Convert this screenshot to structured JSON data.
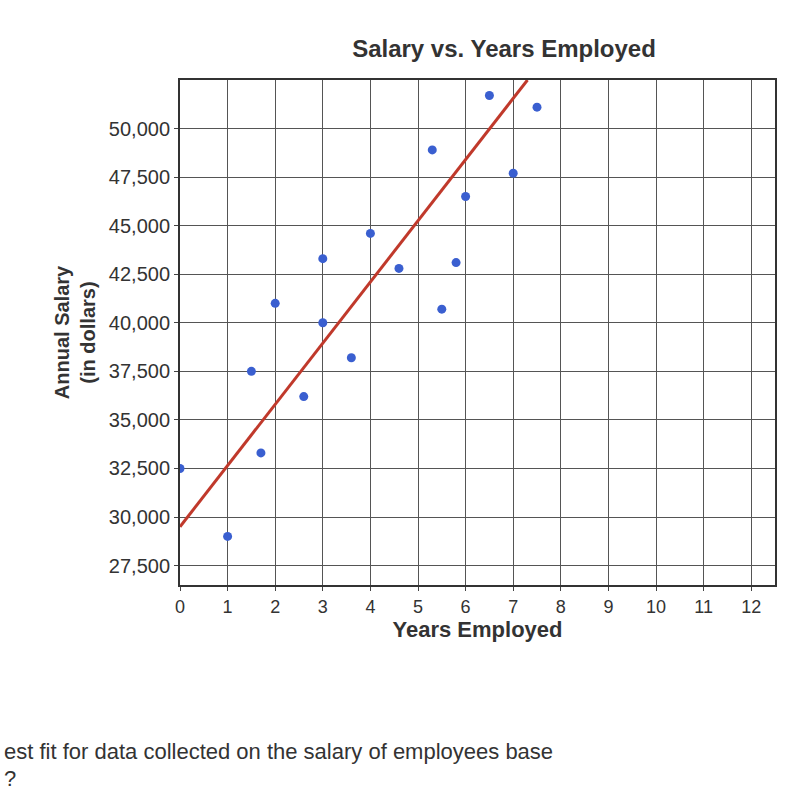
{
  "chart_data": {
    "type": "scatter",
    "title": "Salary vs. Years Employed",
    "x_label": "Years Employed",
    "y_label": "Annual Salary\n(in dollars)",
    "xlim": [
      0,
      12.5
    ],
    "xticks": [
      0,
      1,
      2,
      3,
      4,
      5,
      6,
      7,
      8,
      9,
      10,
      11,
      12
    ],
    "ylim": [
      26500,
      52500
    ],
    "yticks": [
      {
        "value": 27500,
        "label": "27,500"
      },
      {
        "value": 30000,
        "label": "30,000"
      },
      {
        "value": 32500,
        "label": "32,500"
      },
      {
        "value": 35000,
        "label": "35,000"
      },
      {
        "value": 37500,
        "label": "37,500"
      },
      {
        "value": 40000,
        "label": "40,000"
      },
      {
        "value": 42500,
        "label": "42,500"
      },
      {
        "value": 45000,
        "label": "45,000"
      },
      {
        "value": 47500,
        "label": "47,500"
      },
      {
        "value": 50000,
        "label": "50,000"
      }
    ],
    "grid": true,
    "series": [
      {
        "type": "scatter",
        "color": "#3a5fd0",
        "marker": "circle",
        "x": [
          0,
          1,
          1.5,
          1.7,
          2,
          2.6,
          3,
          3,
          3.6,
          4,
          4.6,
          5.3,
          5.5,
          5.8,
          6,
          6.5,
          7,
          7.5
        ],
        "values": [
          32500,
          29000,
          37500,
          33300,
          41000,
          36200,
          43300,
          40000,
          38200,
          44600,
          42800,
          48900,
          40700,
          43100,
          46500,
          51700,
          47700,
          51100
        ]
      },
      {
        "type": "line",
        "color": "#c0392b",
        "line_style": "solid",
        "x": [
          0,
          7.3
        ],
        "values": [
          29500,
          52500
        ]
      }
    ],
    "annotations": [
      "est fit for data collected on the salary of employees base",
      "?"
    ]
  }
}
